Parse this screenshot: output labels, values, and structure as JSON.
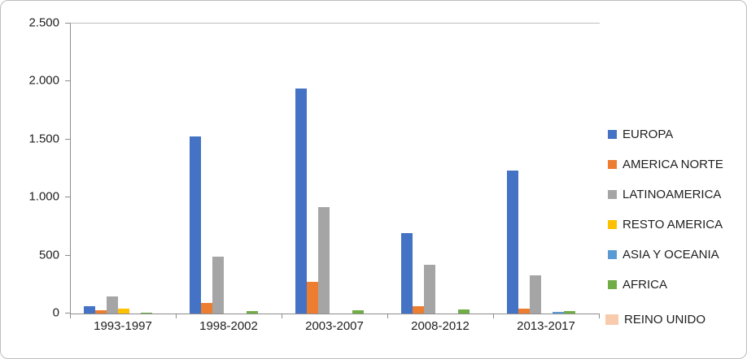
{
  "chart_data": {
    "type": "bar",
    "title": "",
    "xlabel": "",
    "ylabel": "",
    "categories": [
      "1993-1997",
      "1998-2002",
      "2003-2007",
      "2008-2012",
      "2013-2017"
    ],
    "series": [
      {
        "name": "EUROPA",
        "color": "#4472C4",
        "values": [
          60,
          1530,
          1940,
          690,
          1230
        ]
      },
      {
        "name": "AMERICA NORTE",
        "color": "#ED7D31",
        "values": [
          30,
          90,
          270,
          60,
          40
        ]
      },
      {
        "name": "LATINOAMERICA",
        "color": "#A5A5A5",
        "values": [
          150,
          490,
          920,
          420,
          330
        ]
      },
      {
        "name": "RESTO AMERICA",
        "color": "#FFC000",
        "values": [
          40,
          0,
          0,
          0,
          0
        ]
      },
      {
        "name": "ASIA Y OCEANIA",
        "color": "#5B9BD5",
        "values": [
          0,
          0,
          0,
          0,
          15
        ]
      },
      {
        "name": "AFRICA",
        "color": "#70AD47",
        "values": [
          5,
          20,
          30,
          35,
          20
        ]
      },
      {
        "name": "REINO UNIDO",
        "color": "#F8CBAD",
        "values": [
          0,
          0,
          0,
          0,
          0
        ],
        "separate_legend": true
      }
    ],
    "y_ticks": [
      "2.500",
      "2.000",
      "1.500",
      "1.000",
      "500",
      "0"
    ],
    "ylim": [
      0,
      2500
    ],
    "grid": false,
    "legend_position": "right"
  }
}
